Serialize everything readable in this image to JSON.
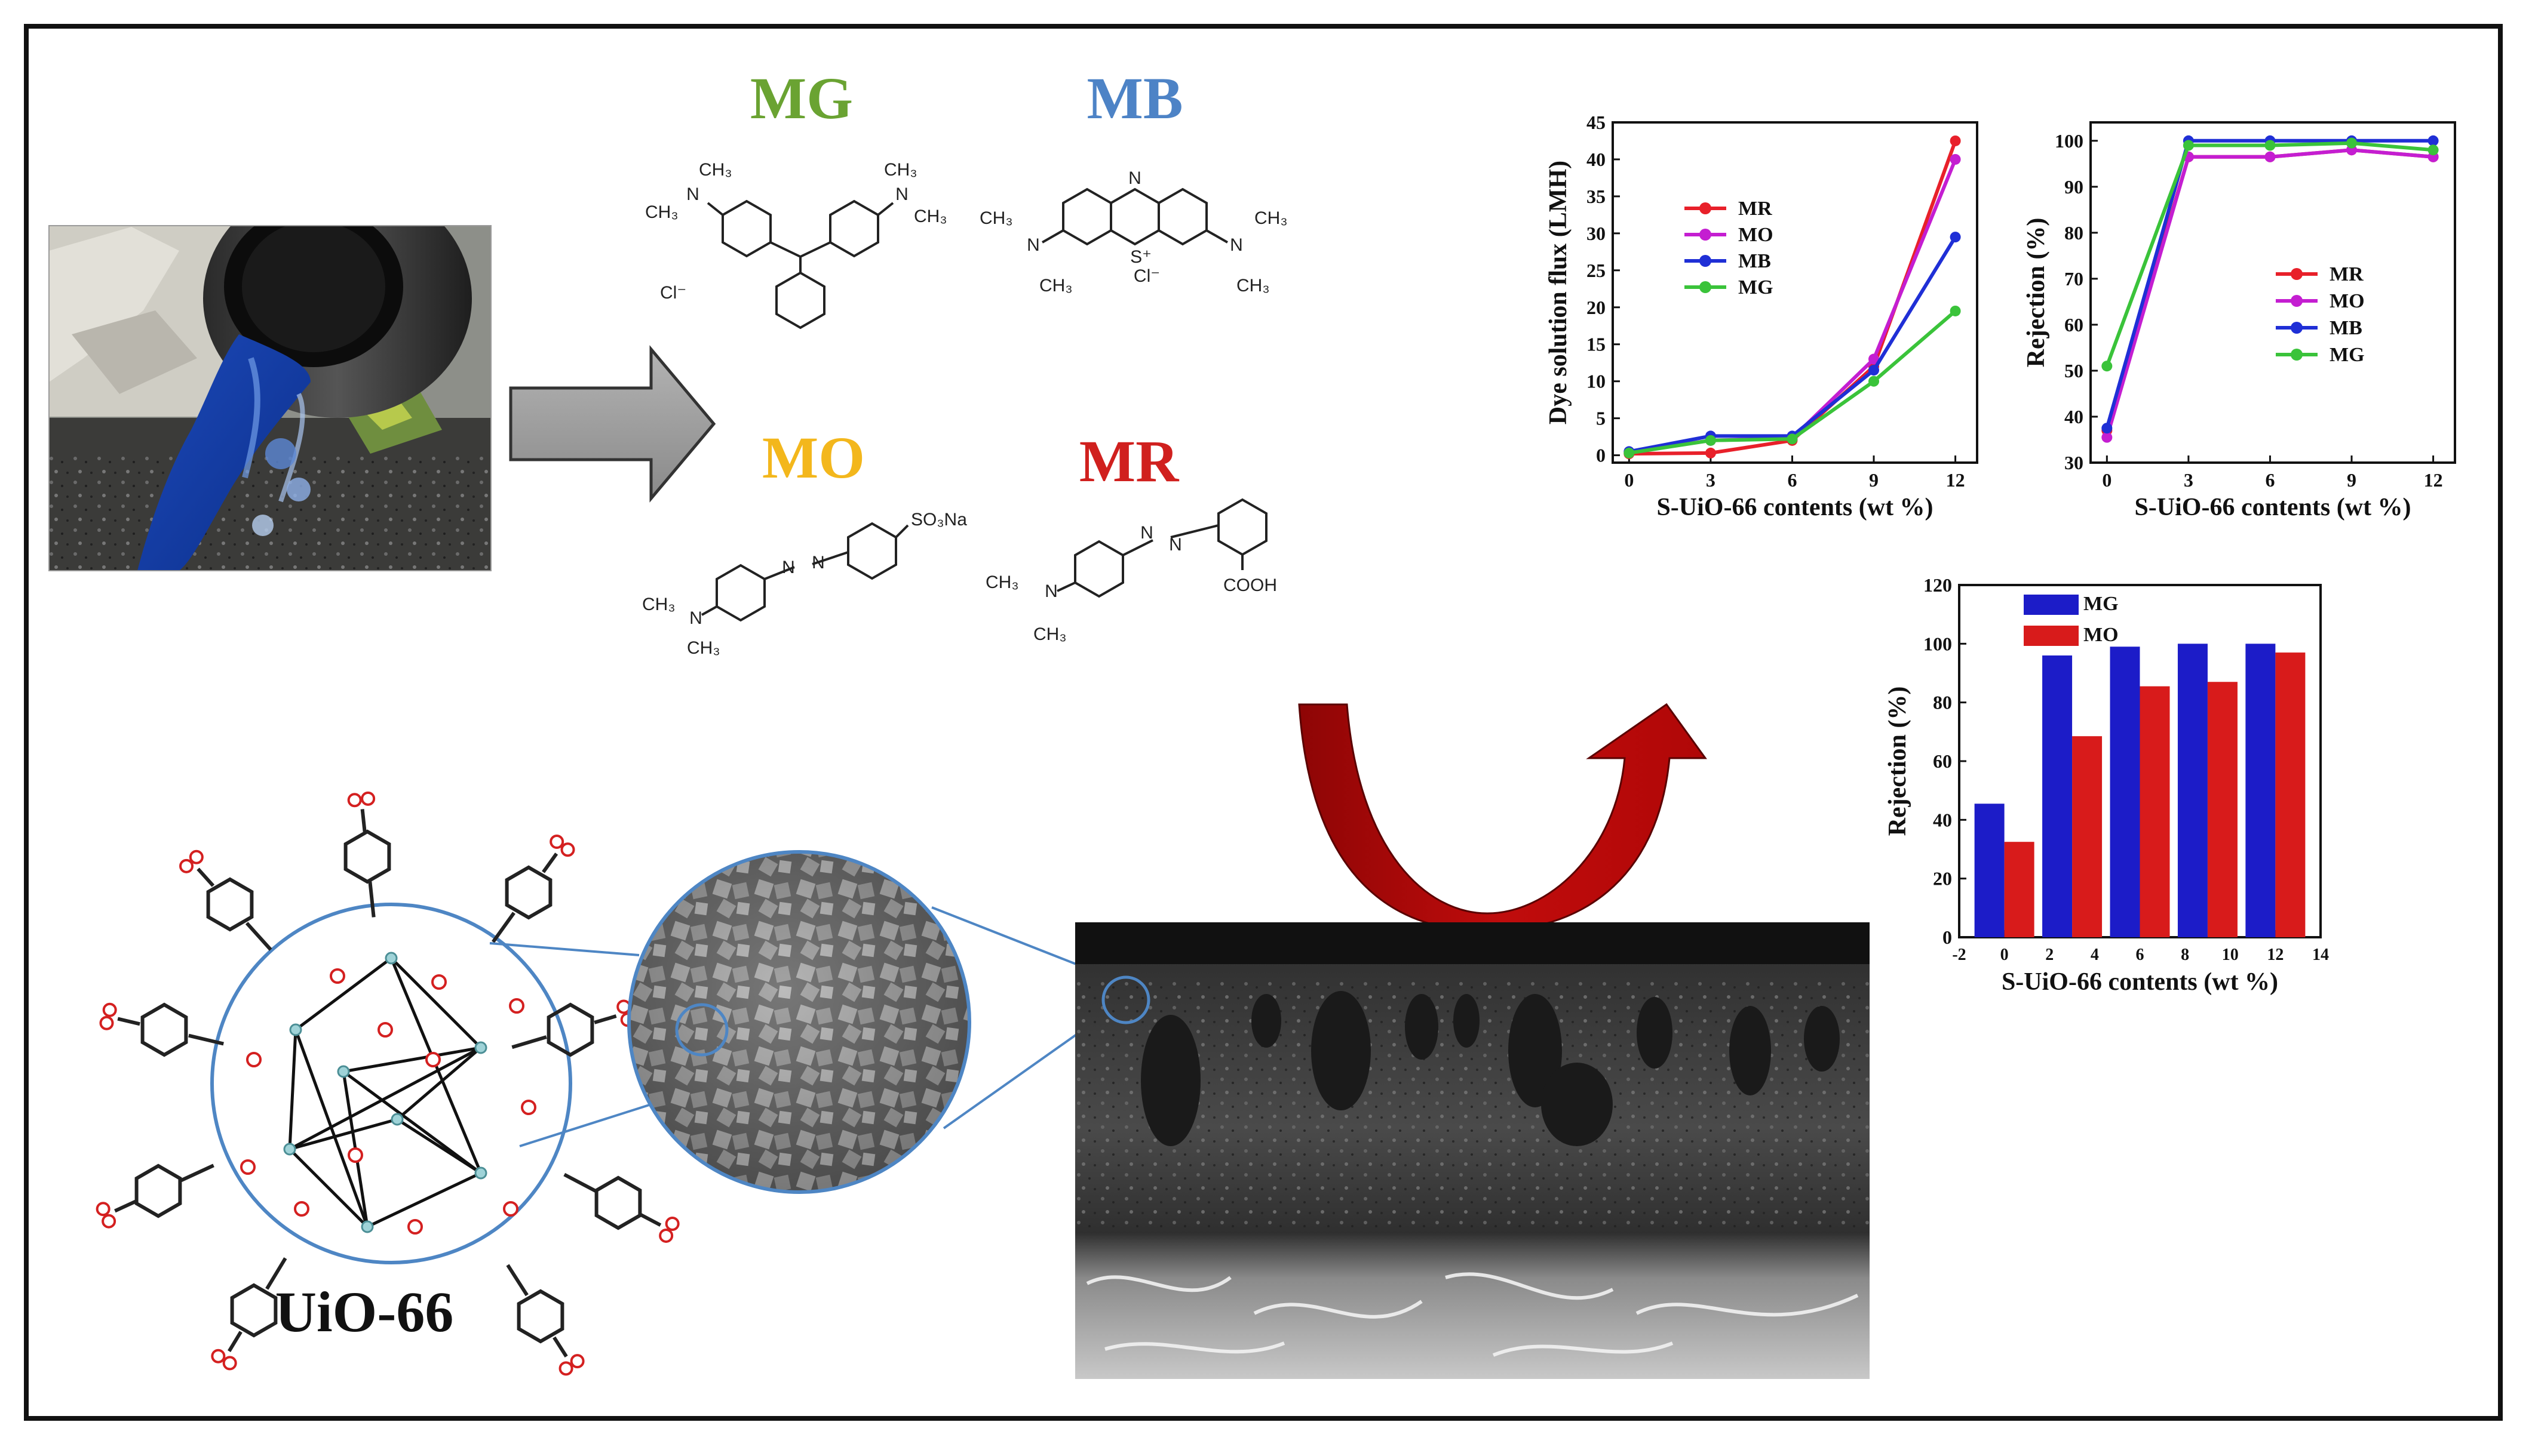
{
  "dyes": {
    "mg": {
      "name": "MG",
      "color": "#6aa332",
      "counter_ion": "Cl⁻"
    },
    "mb": {
      "name": "MB",
      "color": "#4d83c6",
      "counter_ion": "Cl⁻"
    },
    "mo": {
      "name": "MO",
      "color": "#f3b71c",
      "group": "SO₃Na"
    },
    "mr": {
      "name": "MR",
      "color": "#d0201e",
      "group": "COOH"
    }
  },
  "structure_labels": {
    "ch3": "CH₃",
    "n": "N",
    "s_plus": "S⁺",
    "o": "O",
    "o2minus": "O²⁻"
  },
  "mof_label": "UiO-66",
  "photo": {
    "description_icon": "wastewater-outlet-photo"
  },
  "arrow_color": "#c00c0c",
  "chart_data": [
    {
      "id": "flux",
      "type": "line",
      "xlabel": "S-UiO-66 contents (wt %)",
      "ylabel": "Dye solution flux (LMH)",
      "x": [
        0,
        3,
        6,
        9,
        12
      ],
      "xlim": [
        -0.6,
        12.8
      ],
      "ylim": [
        -1,
        45
      ],
      "yticks": [
        0,
        5,
        10,
        15,
        20,
        25,
        30,
        35,
        40,
        45
      ],
      "legend": "upper-left",
      "series": [
        {
          "name": "MR",
          "color": "#e8202a",
          "values": [
            0.2,
            0.3,
            2.0,
            12.0,
            42.5
          ]
        },
        {
          "name": "MO",
          "color": "#c41ed1",
          "values": [
            0.4,
            2.0,
            2.3,
            13.0,
            40.0
          ]
        },
        {
          "name": "MB",
          "color": "#1f2fd6",
          "values": [
            0.5,
            2.6,
            2.6,
            11.5,
            29.5
          ]
        },
        {
          "name": "MG",
          "color": "#3ac33a",
          "values": [
            0.3,
            2.0,
            2.2,
            10.0,
            19.5
          ]
        }
      ]
    },
    {
      "id": "rejection-line",
      "type": "line",
      "xlabel": "S-UiO-66 contents (wt %)",
      "ylabel": "Rejection (%)",
      "x": [
        0,
        3,
        6,
        9,
        12
      ],
      "xlim": [
        -0.6,
        12.8
      ],
      "ylim": [
        30,
        104
      ],
      "yticks": [
        30,
        40,
        50,
        60,
        70,
        80,
        90,
        100
      ],
      "legend": "center-right",
      "series": [
        {
          "name": "MR",
          "color": "#e8202a",
          "values": [
            37,
            96.5,
            96.5,
            98,
            96.5
          ]
        },
        {
          "name": "MO",
          "color": "#c41ed1",
          "values": [
            35.5,
            96.5,
            96.5,
            98,
            96.5
          ]
        },
        {
          "name": "MB",
          "color": "#1f2fd6",
          "values": [
            37.5,
            100,
            100,
            100,
            100
          ]
        },
        {
          "name": "MG",
          "color": "#3ac33a",
          "values": [
            51,
            99,
            99,
            99.5,
            98
          ]
        }
      ]
    },
    {
      "id": "rejection-bar",
      "type": "bar",
      "xlabel": "S-UiO-66 contents (wt %)",
      "ylabel": "Rejection (%)",
      "x": [
        0,
        3,
        6,
        9,
        12
      ],
      "xlim": [
        -2,
        14
      ],
      "xticks": [
        -2,
        0,
        2,
        4,
        6,
        8,
        10,
        12,
        14
      ],
      "ylim": [
        0,
        120
      ],
      "yticks": [
        0,
        20,
        40,
        60,
        80,
        100,
        120
      ],
      "legend": "top-left",
      "series": [
        {
          "name": "MG",
          "color": "#1c1cc8",
          "values": [
            45.5,
            96,
            99,
            100,
            100
          ]
        },
        {
          "name": "MO",
          "color": "#d81b1b",
          "values": [
            32.5,
            68.5,
            85.5,
            87,
            97
          ]
        }
      ]
    }
  ]
}
